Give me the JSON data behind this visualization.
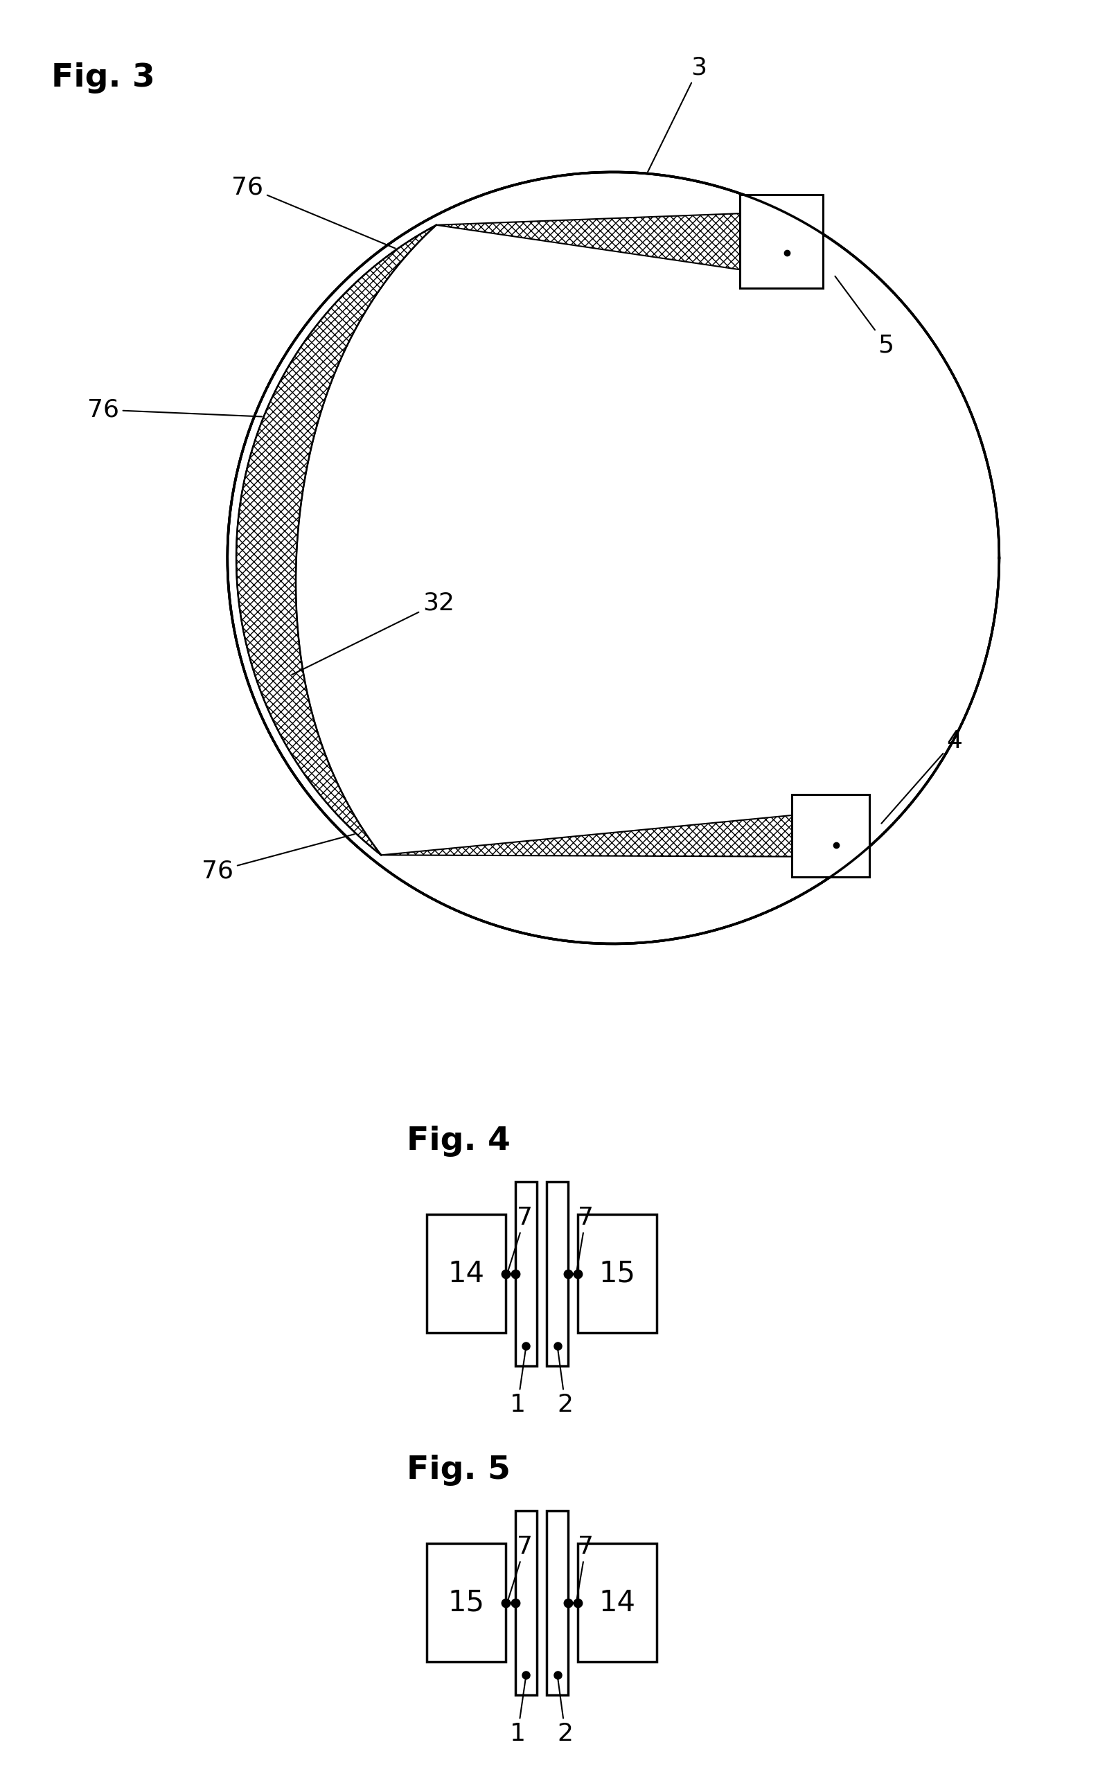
{
  "fig3_title": "Fig. 3",
  "fig4_title": "Fig. 4",
  "fig5_title": "Fig. 5",
  "bg_color": "#ffffff",
  "lw_main": 2.2,
  "lw_thin": 1.5
}
